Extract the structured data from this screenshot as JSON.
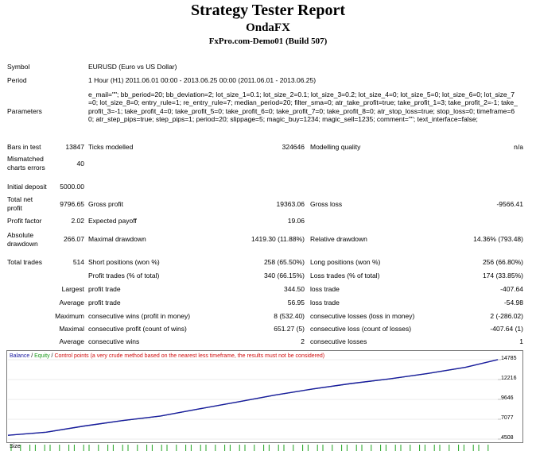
{
  "header": {
    "title": "Strategy Tester Report",
    "subtitle": "OndaFX",
    "server": "FxPro.com-Demo01 (Build 507)"
  },
  "info": {
    "symbol_label": "Symbol",
    "symbol_value": "EURUSD (Euro vs US Dollar)",
    "period_label": "Period",
    "period_value": "1 Hour (H1) 2011.06.01 00:00 - 2013.06.25 00:00 (2011.06.01 - 2013.06.25)",
    "parameters_label": "Parameters",
    "parameters_value": "e_mail=\"\"; bb_period=20; bb_deviation=2; lot_size_1=0.1; lot_size_2=0.1; lot_size_3=0.2; lot_size_4=0; lot_size_5=0; lot_size_6=0; lot_size_7=0; lot_size_8=0; entry_rule=1; re_entry_rule=7; median_period=20; filter_sma=0; atr_take_profit=true; take_profit_1=3; take_profit_2=-1; take_profit_3=-1; take_profit_4=0; take_profit_5=0; take_profit_6=0; take_profit_7=0; take_profit_8=0; atr_stop_loss=true; stop_loss=0; timeframe=60; atr_step_pips=true; step_pips=1; period=20; slippage=5; magic_buy=1234; magic_sell=1235; comment=\"\"; text_interface=false;"
  },
  "stats": {
    "bars_label": "Bars in test",
    "bars_value": "13847",
    "ticks_label": "Ticks modelled",
    "ticks_value": "324646",
    "quality_label": "Modelling quality",
    "quality_value": "n/a",
    "mismatch_label_1": "Mismatched",
    "mismatch_label_2": "charts errors",
    "mismatch_value": "40",
    "deposit_label": "Initial deposit",
    "deposit_value": "5000.00",
    "netprofit_label_1": "Total net",
    "netprofit_label_2": "profit",
    "netprofit_value": "9796.65",
    "grossprofit_label": "Gross profit",
    "grossprofit_value": "19363.06",
    "grossloss_label": "Gross loss",
    "grossloss_value": "-9566.41",
    "pf_label": "Profit factor",
    "pf_value": "2.02",
    "ep_label": "Expected payoff",
    "ep_value": "19.06",
    "absdd_label_1": "Absolute",
    "absdd_label_2": "drawdown",
    "absdd_value": "266.07",
    "maxdd_label": "Maximal drawdown",
    "maxdd_value": "1419.30 (11.88%)",
    "reldd_label": "Relative drawdown",
    "reldd_value": "14.36% (793.48)",
    "trades_label": "Total trades",
    "trades_value": "514",
    "short_label": "Short positions (won %)",
    "short_value": "258 (65.50%)",
    "long_label": "Long positions (won %)",
    "long_value": "256 (66.80%)",
    "pt_label": "Profit trades (% of total)",
    "pt_value": "340 (66.15%)",
    "lt_label": "Loss trades (% of total)",
    "lt_value": "174 (33.85%)",
    "largest_label": "Largest",
    "average_label": "Average",
    "maximum_label": "Maximum",
    "maximal_label": "Maximal",
    "average2_label": "Average",
    "lpt_label": "profit trade",
    "lpt_value": "344.50",
    "llt_label": "loss trade",
    "llt_value": "-407.64",
    "apt_label": "profit trade",
    "apt_value": "56.95",
    "alt_label": "loss trade",
    "alt_value": "-54.98",
    "mcw_label": "consecutive wins (profit in money)",
    "mcw_value": "8 (532.40)",
    "mcl_label": "consecutive losses (loss in money)",
    "mcl_value": "2 (-286.02)",
    "mcp_label": "consecutive profit (count of wins)",
    "mcp_value": "651.27 (5)",
    "mcloss_label": "consecutive loss (count of losses)",
    "mcloss_value": "-407.64 (1)",
    "acw_label": "consecutive wins",
    "acw_value": "2",
    "acl_label": "consecutive losses",
    "acl_value": "1"
  },
  "chart": {
    "legend_balance": "Balance",
    "legend_sep1": " / ",
    "legend_equity": "Equity",
    "legend_sep2": " / ",
    "legend_cp": "Control points (a very crude method based on the nearest less timeframe, the results must not be considered)",
    "y_ticks": [
      "14785",
      "12216",
      "9646",
      "7077",
      "4508"
    ],
    "size_label": "Size",
    "colors": {
      "balance": "#1a1aa0",
      "equity": "#1fa31f",
      "frame": "#7a7a7a",
      "grid": "#d8d8d8"
    }
  },
  "chart_data": {
    "type": "line",
    "ylim": [
      4508,
      14785
    ],
    "y_ticks": [
      14785,
      12216,
      9646,
      7077,
      4508
    ],
    "x": [
      0,
      40,
      80,
      120,
      160,
      200,
      240,
      280,
      320,
      360,
      400,
      440,
      480,
      514
    ],
    "series": [
      {
        "name": "Balance",
        "values": [
          5000,
          5400,
          6200,
          6900,
          7500,
          8400,
          9300,
          10200,
          11000,
          11700,
          12300,
          13000,
          13800,
          14796
        ]
      },
      {
        "name": "Equity",
        "values": [
          5000,
          5380,
          6180,
          6880,
          7480,
          8380,
          9280,
          10180,
          10980,
          11680,
          12280,
          12980,
          13780,
          14796
        ]
      }
    ]
  }
}
